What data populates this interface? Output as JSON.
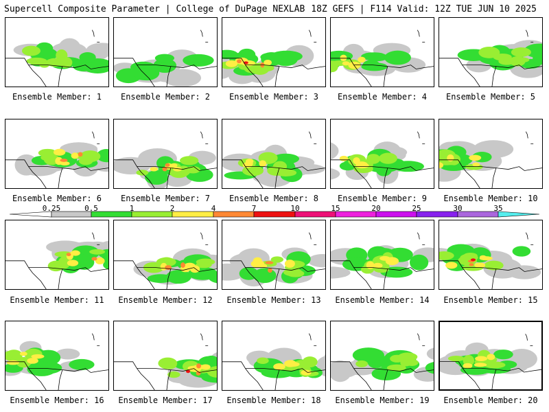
{
  "header": {
    "title": "Supercell Composite Parameter | College of DuPage NEXLAB",
    "run_info": "18Z GEFS | F114 Valid: 12Z TUE JUN 10 2025"
  },
  "panels": [
    {
      "label": "Ensemble Member: 1",
      "max_level": 3
    },
    {
      "label": "Ensemble Member: 2",
      "max_level": 2
    },
    {
      "label": "Ensemble Member: 3",
      "max_level": 6
    },
    {
      "label": "Ensemble Member: 4",
      "max_level": 4
    },
    {
      "label": "Ensemble Member: 5",
      "max_level": 3
    },
    {
      "label": "Ensemble Member: 6",
      "max_level": 5
    },
    {
      "label": "Ensemble Member: 7",
      "max_level": 5
    },
    {
      "label": "Ensemble Member: 8",
      "max_level": 4
    },
    {
      "label": "Ensemble Member: 9",
      "max_level": 4
    },
    {
      "label": "Ensemble Member: 10",
      "max_level": 4
    },
    {
      "label": "Ensemble Member: 11",
      "max_level": 5
    },
    {
      "label": "Ensemble Member: 12",
      "max_level": 5
    },
    {
      "label": "Ensemble Member: 13",
      "max_level": 5
    },
    {
      "label": "Ensemble Member: 14",
      "max_level": 4
    },
    {
      "label": "Ensemble Member: 15",
      "max_level": 6
    },
    {
      "label": "Ensemble Member: 16",
      "max_level": 4
    },
    {
      "label": "Ensemble Member: 17",
      "max_level": 6
    },
    {
      "label": "Ensemble Member: 18",
      "max_level": 4
    },
    {
      "label": "Ensemble Member: 19",
      "max_level": 3
    },
    {
      "label": "Ensemble Member: 20",
      "max_level": 4
    }
  ],
  "legend": {
    "ticks": [
      "0.25",
      "0.5",
      "1",
      "2",
      "4",
      "7",
      "10",
      "15",
      "20",
      "25",
      "30",
      "35"
    ],
    "colors": [
      "#ffffff",
      "#c8c8c8",
      "#33dd33",
      "#99ee33",
      "#ffee44",
      "#ff8833",
      "#ee1111",
      "#ee1177",
      "#ee22dd",
      "#cc11ee",
      "#8822ee",
      "#aa66dd",
      "#55eeee"
    ]
  },
  "selected_panel": "Ensemble Member: 20"
}
